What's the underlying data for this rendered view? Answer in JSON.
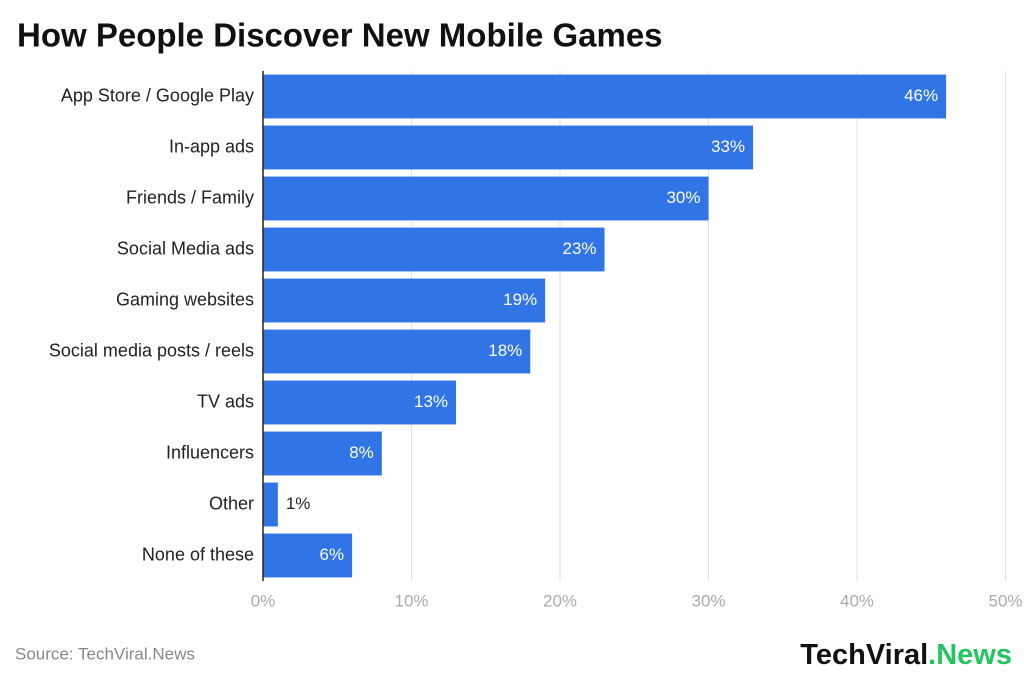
{
  "chart_data": {
    "type": "hbar",
    "title": "How People Discover New Mobile Games",
    "categories": [
      "App Store / Google Play",
      "In-app ads",
      "Friends / Family",
      "Social Media ads",
      "Gaming websites",
      "Social media posts / reels",
      "TV ads",
      "Influencers",
      "Other",
      "None of these"
    ],
    "values": [
      46,
      33,
      30,
      23,
      19,
      18,
      13,
      8,
      1,
      6
    ],
    "value_labels": [
      "46%",
      "33%",
      "30%",
      "23%",
      "19%",
      "18%",
      "13%",
      "8%",
      "1%",
      "6%"
    ],
    "color": "#3174e6",
    "xlim": [
      0,
      50
    ],
    "xticks": [
      {
        "value": 0,
        "label": "0%"
      },
      {
        "value": 10,
        "label": "10%"
      },
      {
        "value": 20,
        "label": "20%"
      },
      {
        "value": 30,
        "label": "30%"
      },
      {
        "value": 40,
        "label": "40%"
      },
      {
        "value": 50,
        "label": "50%"
      }
    ],
    "grid": true,
    "source": "Source: TechViral.News",
    "logo": {
      "main": "TechViral",
      "accent": ".News"
    }
  }
}
